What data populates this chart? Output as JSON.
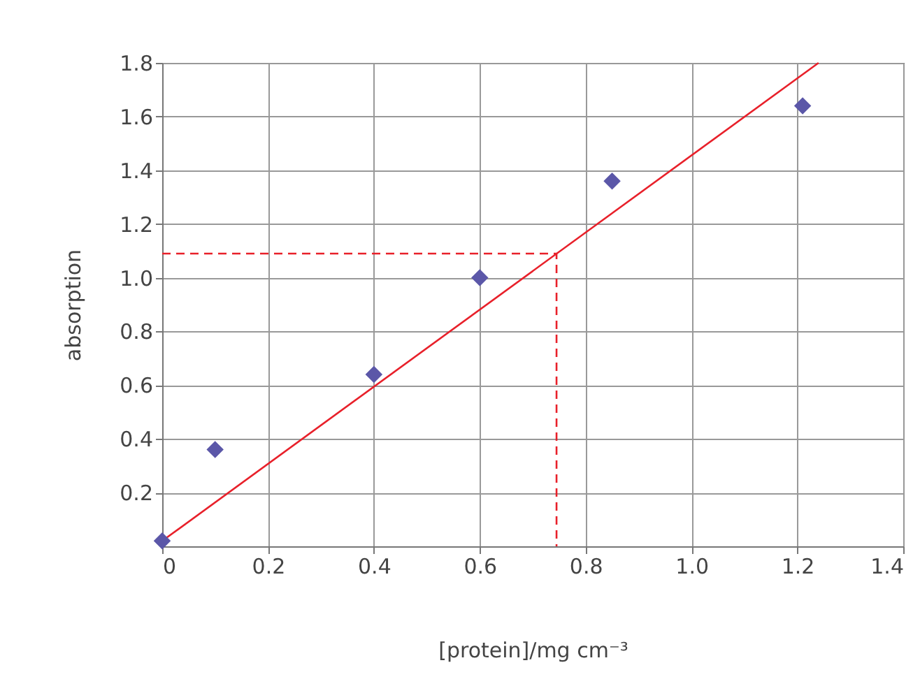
{
  "chart_data": {
    "type": "scatter",
    "xlabel": "[protein]/mg cm⁻³",
    "ylabel": "absorption",
    "xlim": [
      0,
      1.4
    ],
    "xticks": [
      0,
      0.2,
      0.4,
      0.6,
      0.8,
      {
        "value": 1,
        "label": "1.0"
      },
      1.2,
      1.4
    ],
    "ylim": [
      0,
      1.8
    ],
    "yticks": [
      0.2,
      0.4,
      0.6,
      0.8,
      {
        "value": 1,
        "label": "1.0"
      },
      1.2,
      1.4,
      1.6,
      1.8
    ],
    "grid": true,
    "marker": "diamond",
    "series": [
      {
        "type": "line",
        "color": "#e8202a",
        "marker": "none",
        "line_style": "solid",
        "x": [
          0,
          1.24
        ],
        "values": [
          0.02,
          1.8
        ]
      },
      {
        "type": "line",
        "color": "#e8202a",
        "marker": "none",
        "line_style": "dashed",
        "x": [
          0,
          0.745,
          0.745
        ],
        "values": [
          1.09,
          1.09,
          0
        ]
      },
      {
        "color": "#5b57a8",
        "x": [
          0,
          0.1,
          0.4,
          0.6,
          0.85,
          1.21
        ],
        "values": [
          0.02,
          0.36,
          0.64,
          1.0,
          1.36,
          1.64
        ]
      }
    ]
  }
}
